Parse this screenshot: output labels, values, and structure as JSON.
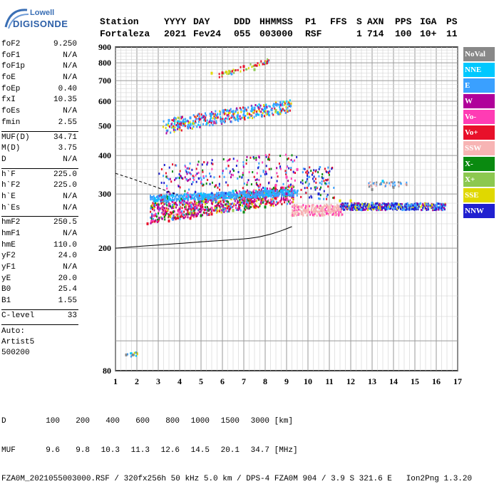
{
  "logo": {
    "line1": "Lowell",
    "line2": "DIGISONDE"
  },
  "header": {
    "labels": [
      "Station",
      "YYYY",
      "DAY",
      "DDD",
      "HHMMSS",
      "P1",
      "FFS",
      "S",
      "AXN",
      "PPS",
      "IGA",
      "PS"
    ],
    "values": [
      "Fortaleza",
      "2021",
      "Fev24",
      "055",
      "003000",
      "RSF",
      "",
      "1",
      "714",
      "100",
      "10+",
      "11"
    ]
  },
  "params": {
    "group1": [
      {
        "name": "foF2",
        "value": "9.250"
      },
      {
        "name": "foF1",
        "value": "N/A"
      },
      {
        "name": "foF1p",
        "value": "N/A"
      },
      {
        "name": "foE",
        "value": "N/A"
      },
      {
        "name": "foEp",
        "value": "0.40"
      },
      {
        "name": "fxI",
        "value": "10.35"
      },
      {
        "name": "foEs",
        "value": "N/A"
      },
      {
        "name": "fmin",
        "value": "2.55"
      }
    ],
    "group2": [
      {
        "name": "MUF(D)",
        "value": "34.71"
      },
      {
        "name": "M(D)",
        "value": "3.75"
      },
      {
        "name": "D",
        "value": "N/A"
      }
    ],
    "group3": [
      {
        "name": "h`F",
        "value": "225.0"
      },
      {
        "name": "h`F2",
        "value": "225.0"
      },
      {
        "name": "h`E",
        "value": "N/A"
      },
      {
        "name": "h`Es",
        "value": "N/A"
      }
    ],
    "group4": [
      {
        "name": "hmF2",
        "value": "250.5"
      },
      {
        "name": "hmF1",
        "value": "N/A"
      },
      {
        "name": "hmE",
        "value": "110.0"
      },
      {
        "name": "yF2",
        "value": "24.0"
      },
      {
        "name": "yF1",
        "value": "N/A"
      },
      {
        "name": "yE",
        "value": "20.0"
      },
      {
        "name": "B0",
        "value": "25.4"
      },
      {
        "name": "B1",
        "value": "1.55"
      }
    ],
    "group5": [
      {
        "name": "C-level",
        "value": "33"
      }
    ],
    "auto": [
      "Auto:",
      "Artist5",
      "500200"
    ]
  },
  "legend": [
    {
      "label": "NoVal",
      "color": "#888888"
    },
    {
      "label": "NNE",
      "color": "#00c8ff"
    },
    {
      "label": "E",
      "color": "#3aa0ff"
    },
    {
      "label": "W",
      "color": "#b0009a"
    },
    {
      "label": "Vo-",
      "color": "#ff3cb4"
    },
    {
      "label": "Vo+",
      "color": "#e8102a"
    },
    {
      "label": "SSW",
      "color": "#f7b4b4"
    },
    {
      "label": "X-",
      "color": "#0a8a10"
    },
    {
      "label": "X+",
      "color": "#8cc850"
    },
    {
      "label": "SSE",
      "color": "#e0d800"
    },
    {
      "label": "NNW",
      "color": "#2020d0"
    }
  ],
  "footer": {
    "line1_label": "D",
    "distances": [
      "100",
      "200",
      "400",
      "600",
      "800",
      "1000",
      "1500",
      "3000"
    ],
    "dist_unit": "[km]",
    "line2_label": "MUF",
    "mufs": [
      "9.6",
      "9.8",
      "10.3",
      "11.3",
      "12.6",
      "14.5",
      "20.1",
      "34.7"
    ],
    "muf_unit": "[MHz]",
    "line3": "FZA0M_2021055003000.RSF / 320fx256h 50 kHz 5.0 km / DPS-4 FZA0M 904 / 3.9 S 321.6 E   Ion2Png 1.3.20"
  },
  "chart_data": {
    "type": "scatter",
    "title": "",
    "xlabel": "",
    "ylabel": "",
    "xlim": [
      1,
      17
    ],
    "ylim": [
      80,
      900
    ],
    "y_scale": "log",
    "x_ticks": [
      1,
      2,
      3,
      4,
      5,
      6,
      7,
      8,
      9,
      10,
      11,
      12,
      13,
      14,
      15,
      16,
      17
    ],
    "y_ticks": [
      80,
      200,
      300,
      400,
      500,
      600,
      700,
      800,
      900
    ],
    "grid": true,
    "legend_position": "right",
    "series": [
      {
        "name": "E",
        "color": "#3aa0ff",
        "points": [
          [
            3.0,
            292
          ],
          [
            4.0,
            295
          ],
          [
            5.0,
            297
          ],
          [
            6.0,
            300
          ],
          [
            7.0,
            305
          ],
          [
            8.0,
            310
          ],
          [
            9.0,
            300
          ],
          [
            3.5,
            520
          ],
          [
            4.5,
            530
          ],
          [
            5.5,
            545
          ],
          [
            6.5,
            555
          ],
          [
            7.5,
            570
          ],
          [
            8.5,
            585
          ],
          [
            13.0,
            280
          ],
          [
            14.0,
            278
          ],
          [
            15.0,
            275
          ],
          [
            16.0,
            275
          ]
        ]
      },
      {
        "name": "NNE",
        "color": "#00c8ff",
        "points": [
          [
            3.5,
            292
          ],
          [
            5.0,
            300
          ],
          [
            6.5,
            306
          ],
          [
            8.0,
            312
          ],
          [
            13.5,
            330
          ]
        ]
      },
      {
        "name": "W",
        "color": "#b0009a",
        "points": [
          [
            3.0,
            272
          ],
          [
            4.0,
            268
          ],
          [
            5.0,
            270
          ],
          [
            6.0,
            275
          ],
          [
            7.0,
            280
          ],
          [
            8.0,
            290
          ],
          [
            9.0,
            300
          ]
        ]
      },
      {
        "name": "Vo-",
        "color": "#ff3cb4",
        "points": [
          [
            2.8,
            255
          ],
          [
            4.0,
            262
          ],
          [
            5.5,
            270
          ],
          [
            7.0,
            290
          ],
          [
            8.5,
            320
          ],
          [
            9.0,
            340
          ],
          [
            9.5,
            360
          ]
        ]
      },
      {
        "name": "Vo+",
        "color": "#e8102a",
        "points": [
          [
            2.5,
            240
          ],
          [
            3.5,
            245
          ],
          [
            4.5,
            250
          ],
          [
            5.5,
            258
          ],
          [
            6.5,
            265
          ],
          [
            7.5,
            272
          ],
          [
            8.5,
            290
          ],
          [
            6.0,
            742
          ],
          [
            7.0,
            778
          ]
        ]
      },
      {
        "name": "SSW",
        "color": "#f7b4b4",
        "points": [
          [
            9.5,
            262
          ],
          [
            10.0,
            262
          ],
          [
            10.5,
            262
          ],
          [
            11.0,
            265
          ],
          [
            11.5,
            268
          ]
        ]
      },
      {
        "name": "X-",
        "color": "#0a8a10",
        "points": [
          [
            5.0,
            255
          ],
          [
            7.0,
            262
          ],
          [
            8.0,
            272
          ]
        ]
      },
      {
        "name": "X+",
        "color": "#8cc850",
        "points": [
          [
            4.5,
            260
          ],
          [
            6.5,
            265
          ],
          [
            8.5,
            560
          ],
          [
            7.5,
            760
          ]
        ]
      },
      {
        "name": "SSE",
        "color": "#e0d800",
        "points": [
          [
            11.5,
            285
          ],
          [
            12.0,
            285
          ],
          [
            5.5,
            740
          ]
        ]
      },
      {
        "name": "NNW",
        "color": "#2020d0",
        "points": [
          [
            10.5,
            300
          ],
          [
            13.0,
            272
          ],
          [
            14.0,
            275
          ],
          [
            15.0,
            270
          ],
          [
            16.0,
            268
          ]
        ]
      },
      {
        "name": "NoVal",
        "color": "#888888",
        "points": [
          [
            1.5,
            90
          ],
          [
            1.8,
            90
          ],
          [
            13.0,
            310
          ],
          [
            14.0,
            315
          ]
        ]
      }
    ]
  }
}
